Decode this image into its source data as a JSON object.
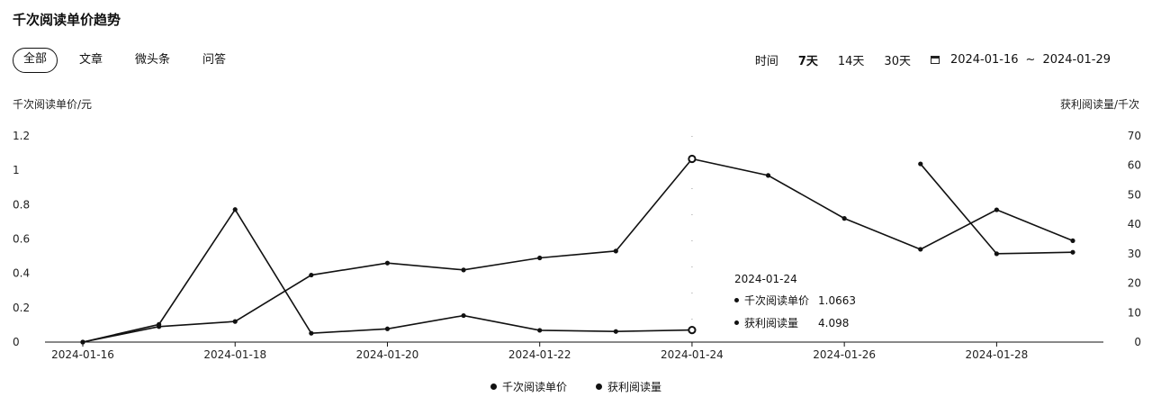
{
  "page_title": "千次阅读单价趋势",
  "tabs": [
    {
      "label": "全部",
      "active": true
    },
    {
      "label": "文章",
      "active": false
    },
    {
      "label": "微头条",
      "active": false
    },
    {
      "label": "问答",
      "active": false
    }
  ],
  "range": {
    "label": "时间",
    "options": [
      "7天",
      "14天",
      "30天"
    ],
    "start_date": "2024-01-16",
    "separator": "~",
    "end_date": "2024-01-29"
  },
  "chart_data": {
    "type": "line",
    "x": [
      "2024-01-16",
      "2024-01-17",
      "2024-01-18",
      "2024-01-19",
      "2024-01-20",
      "2024-01-21",
      "2024-01-22",
      "2024-01-23",
      "2024-01-24",
      "2024-01-25",
      "2024-01-26",
      "2024-01-27",
      "2024-01-28",
      "2024-01-29"
    ],
    "x_tick_labels": [
      "2024-01-16",
      "2024-01-18",
      "2024-01-20",
      "2024-01-22",
      "2024-01-24",
      "2024-01-26",
      "2024-01-28"
    ],
    "ylabel_left": "千次阅读单价/元",
    "ylabel_right": "获利阅读量/千次",
    "ylim_left": [
      0,
      1.2
    ],
    "ylim_right": [
      0,
      70
    ],
    "yticks_left": [
      "0",
      "0.2",
      "0.4",
      "0.6",
      "0.8",
      "1",
      "1.2"
    ],
    "yticks_right": [
      "0",
      "10",
      "20",
      "30",
      "40",
      "50",
      "60",
      "70"
    ],
    "grid": false,
    "legend_position": "bottom",
    "series": [
      {
        "name": "千次阅读单价",
        "axis": "left",
        "values": [
          0,
          0.09,
          0.12,
          0.39,
          0.46,
          0.42,
          0.49,
          0.53,
          1.0663,
          0.97,
          0.72,
          0.54,
          0.77,
          0.59
        ]
      },
      {
        "name": "获利阅读量",
        "axis": "right",
        "values": [
          0,
          6,
          45,
          3,
          4.5,
          9,
          4,
          3.6,
          4.098,
          null,
          null,
          60.5,
          30,
          30.5
        ]
      }
    ],
    "tooltip": {
      "date": "2024-01-24",
      "rows": [
        {
          "name": "千次阅读单价",
          "value": "1.0663"
        },
        {
          "name": "获利阅读量",
          "value": "4.098"
        }
      ]
    }
  }
}
